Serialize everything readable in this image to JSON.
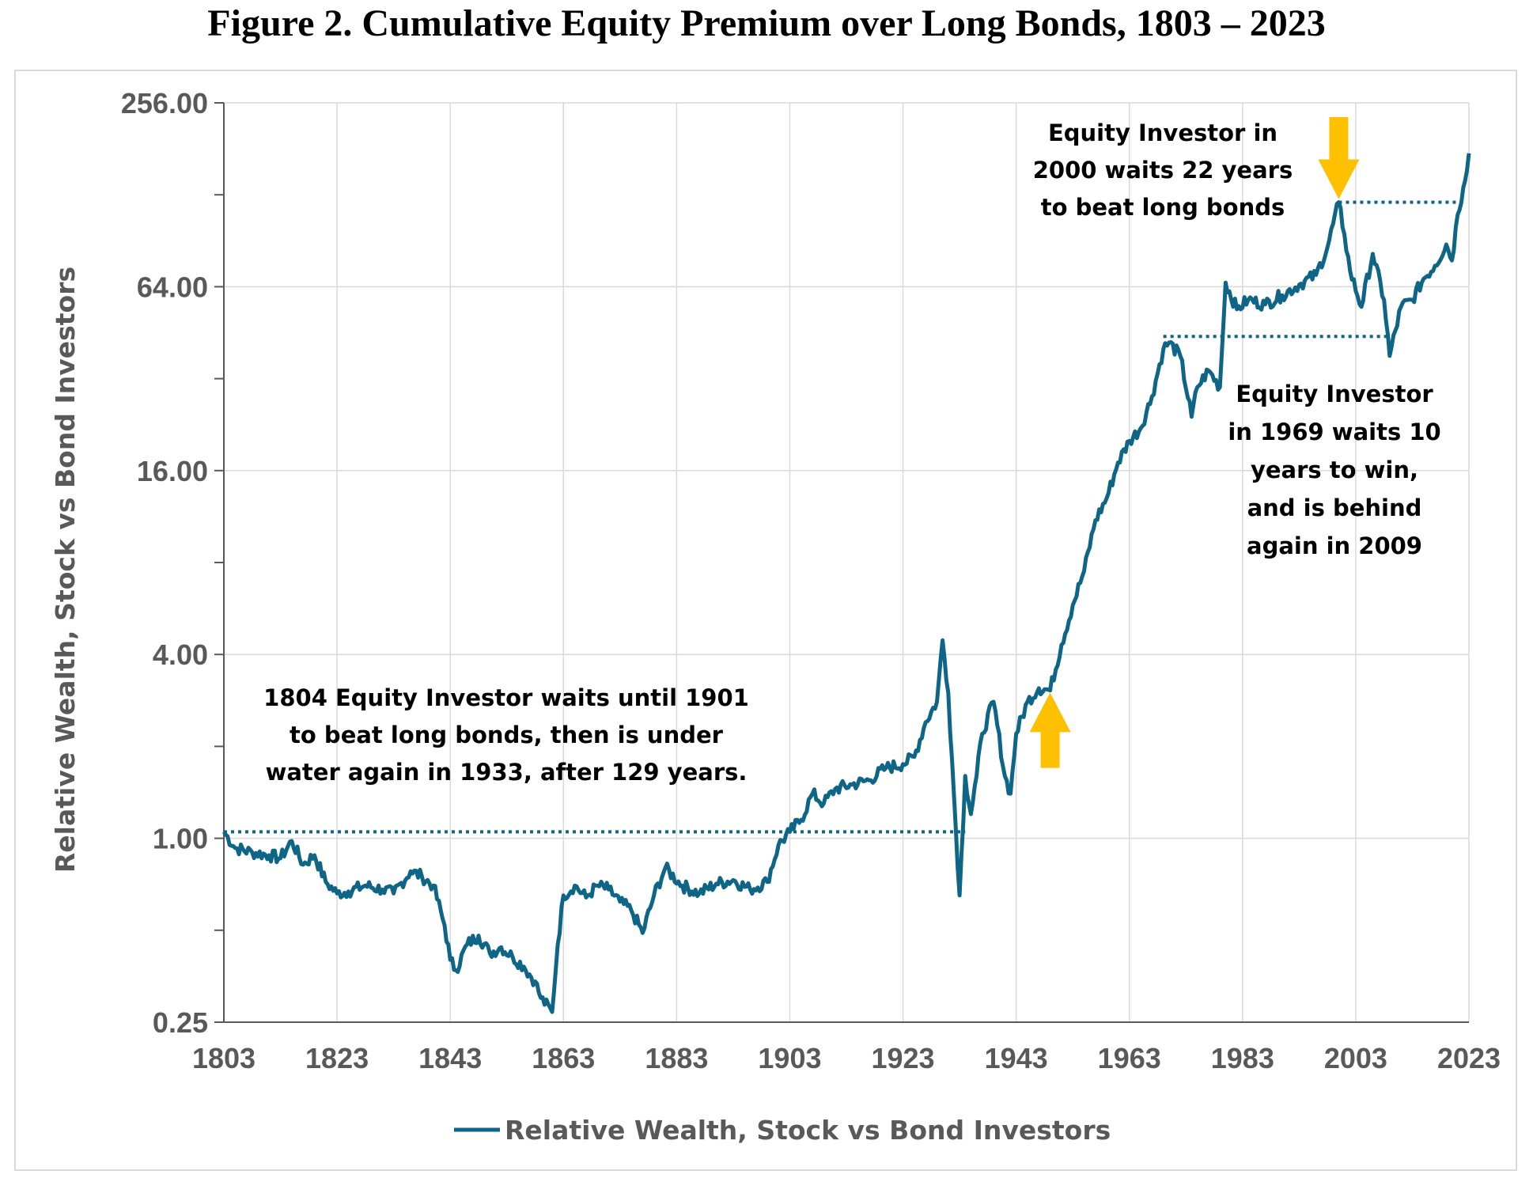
{
  "title": "Figure 2.  Cumulative Equity Premium over Long Bonds, 1803 – 2023",
  "colors": {
    "series": "#0e6586",
    "arrow": "#ffc000",
    "grid": "#d9d9d9",
    "axis": "#595959"
  },
  "chart_data": {
    "type": "line",
    "title": "Figure 2.  Cumulative Equity Premium over Long Bonds, 1803 – 2023",
    "xlabel": "",
    "ylabel": "Relative Wealth, Stock vs Bond Investors",
    "y_scale": "log2",
    "xlim": [
      1803,
      2023
    ],
    "ylim": [
      0.25,
      256
    ],
    "x_ticks": [
      "1803",
      "1823",
      "1843",
      "1863",
      "1883",
      "1903",
      "1923",
      "1943",
      "1963",
      "1983",
      "2003",
      "2023"
    ],
    "y_ticks": [
      "256.00",
      "64.00",
      "16.00",
      "4.00",
      "1.00",
      "0.25"
    ],
    "grid": true,
    "legend_position": "bottom-center",
    "series": [
      {
        "name": "Relative Wealth, Stock vs Bond Investors",
        "x": [
          1803,
          1805,
          1808,
          1811,
          1813,
          1815,
          1817,
          1819,
          1821,
          1823,
          1825,
          1828,
          1831,
          1833,
          1836,
          1838,
          1840,
          1842,
          1843,
          1844,
          1846,
          1848,
          1850,
          1852,
          1854,
          1856,
          1858,
          1859,
          1861,
          1862,
          1863,
          1865,
          1867,
          1869,
          1871,
          1873,
          1875,
          1877,
          1879,
          1881,
          1884,
          1887,
          1890,
          1893,
          1896,
          1899,
          1901,
          1903,
          1905,
          1907,
          1909,
          1911,
          1914,
          1917,
          1920,
          1923,
          1925,
          1927,
          1929,
          1930,
          1931,
          1932,
          1933,
          1934,
          1935,
          1936,
          1937,
          1939,
          1941,
          1942,
          1943,
          1945,
          1947,
          1949,
          1951,
          1953,
          1955,
          1957,
          1959,
          1961,
          1963,
          1965,
          1967,
          1969,
          1970,
          1972,
          1974,
          1975,
          1977,
          1979,
          1980,
          1982,
          1984,
          1987,
          1990,
          1993,
          1996,
          1998,
          2000,
          2001,
          2002,
          2004,
          2006,
          2008,
          2009,
          2011,
          2013,
          2015,
          2017,
          2019,
          2020,
          2021,
          2022,
          2023
        ],
        "y": [
          1.05,
          0.93,
          0.9,
          0.88,
          0.86,
          0.98,
          0.82,
          0.88,
          0.72,
          0.66,
          0.67,
          0.7,
          0.68,
          0.66,
          0.78,
          0.75,
          0.7,
          0.52,
          0.4,
          0.37,
          0.45,
          0.48,
          0.42,
          0.44,
          0.41,
          0.38,
          0.34,
          0.3,
          0.27,
          0.45,
          0.65,
          0.7,
          0.64,
          0.7,
          0.68,
          0.62,
          0.58,
          0.49,
          0.65,
          0.8,
          0.7,
          0.66,
          0.71,
          0.73,
          0.68,
          0.72,
          0.95,
          1.05,
          1.15,
          1.4,
          1.3,
          1.45,
          1.5,
          1.55,
          1.7,
          1.75,
          1.85,
          2.4,
          2.8,
          4.45,
          3.0,
          1.4,
          0.65,
          1.6,
          1.2,
          1.6,
          2.2,
          2.8,
          1.6,
          1.4,
          2.2,
          2.8,
          3.1,
          3.05,
          4.3,
          5.8,
          7.5,
          11.0,
          13.0,
          17.0,
          20.0,
          22.0,
          28.0,
          40.0,
          42.0,
          38.0,
          24.0,
          30.0,
          34.0,
          30.0,
          66.0,
          54.0,
          58.0,
          56.0,
          60.0,
          65.0,
          70.0,
          86.0,
          121.0,
          95.0,
          72.0,
          55.0,
          82.0,
          58.0,
          38.0,
          55.0,
          58.0,
          68.0,
          75.0,
          88.0,
          78.0,
          110.0,
          135.0,
          175.0
        ]
      }
    ],
    "reference_lines": [
      {
        "y": 1.05,
        "x_from": 1803,
        "x_to": 1934,
        "style": "dotted"
      },
      {
        "y": 44.0,
        "x_from": 1969,
        "x_to": 2009,
        "style": "dotted"
      },
      {
        "y": 121.0,
        "x_from": 2000,
        "x_to": 2022,
        "style": "dotted"
      }
    ],
    "annotations": [
      {
        "id": "note-1804",
        "lines": [
          "1804 Equity Investor waits until 1901",
          "to beat long bonds, then is under",
          "water again in 1933, after 129 years."
        ]
      },
      {
        "id": "note-2000",
        "lines": [
          "Equity Investor in",
          "2000 waits 22 years",
          "to beat long bonds"
        ]
      },
      {
        "id": "note-1969",
        "lines": [
          "Equity Investor",
          "in 1969 waits 10",
          "years to win,",
          "and is behind",
          "again in 2009"
        ]
      }
    ],
    "arrows": [
      {
        "id": "arrow-1969-up",
        "direction": "up",
        "x": 1949,
        "y_tip": 3.0,
        "y_tail": 1.7
      },
      {
        "id": "arrow-2000-down",
        "direction": "down",
        "x": 2000,
        "y_tip": 124.0,
        "y_tail": 230.0
      }
    ],
    "legend": [
      "Relative Wealth, Stock vs Bond Investors"
    ]
  }
}
